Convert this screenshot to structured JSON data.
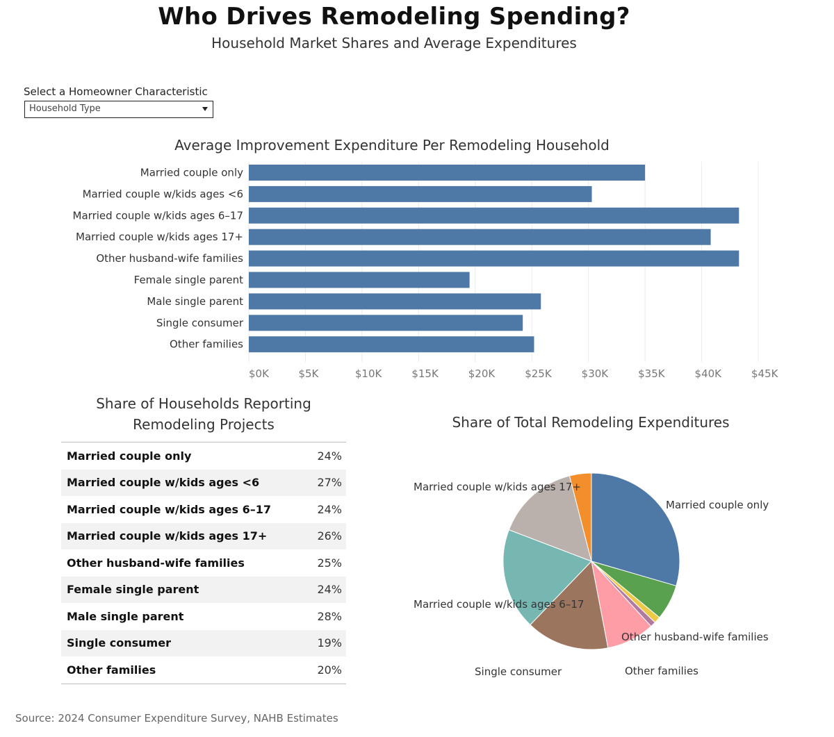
{
  "header": {
    "title": "Who Drives Remodeling Spending?",
    "subtitle": "Household Market Shares and Average Expenditures"
  },
  "filter": {
    "label": "Select a Homeowner Characteristic",
    "selected": "Household Type"
  },
  "footer": {
    "source": "Source: 2024 Consumer Expenditure Survey, NAHB Estimates"
  },
  "chart_data": [
    {
      "type": "bar",
      "orientation": "horizontal",
      "title": "Average Improvement Expenditure Per Remodeling Household",
      "categories": [
        "Married couple only",
        "Married couple w/kids ages <6",
        "Married couple w/kids ages 6–17",
        "Married couple w/kids ages 17+",
        "Other husband-wife families",
        "Female single parent",
        "Male single parent",
        "Single consumer",
        "Other families"
      ],
      "values": [
        35000,
        30300,
        43300,
        40800,
        43300,
        19500,
        25800,
        24200,
        25200
      ],
      "xlim": [
        0,
        45000
      ],
      "ticks": [
        0,
        5000,
        10000,
        15000,
        20000,
        25000,
        30000,
        35000,
        40000,
        45000
      ],
      "tick_labels": [
        "$0K",
        "$5K",
        "$10K",
        "$15K",
        "$20K",
        "$25K",
        "$30K",
        "$35K",
        "$40K",
        "$45K"
      ],
      "grid": true,
      "color": "#4e79a7"
    },
    {
      "type": "table",
      "title_lines": [
        "Share of Households Reporting",
        "Remodeling Projects"
      ],
      "rows": [
        {
          "label": "Married couple only",
          "value": "24%"
        },
        {
          "label": "Married couple w/kids ages <6",
          "value": "27%"
        },
        {
          "label": "Married couple w/kids ages 6–17",
          "value": "24%"
        },
        {
          "label": "Married couple w/kids ages 17+",
          "value": "26%"
        },
        {
          "label": "Other husband-wife families",
          "value": "25%"
        },
        {
          "label": "Female single parent",
          "value": "24%"
        },
        {
          "label": "Male single parent",
          "value": "28%"
        },
        {
          "label": "Single consumer",
          "value": "19%"
        },
        {
          "label": "Other families",
          "value": "20%"
        }
      ]
    },
    {
      "type": "pie",
      "title": "Share of Total Remodeling Expenditures",
      "slices": [
        {
          "name": "Married couple only",
          "value": 29.5,
          "color": "#4e79a7",
          "labeled": true
        },
        {
          "name": "Married couple w/kids ages <6",
          "value": 6.5,
          "color": "#59a14f",
          "labeled": false
        },
        {
          "name": "Female single parent",
          "value": 1.2,
          "color": "#edc948",
          "labeled": false
        },
        {
          "name": "Male single parent",
          "value": 1.0,
          "color": "#b07aa1",
          "labeled": false
        },
        {
          "name": "Other families",
          "value": 8.8,
          "color": "#ff9da7",
          "labeled": true
        },
        {
          "name": "Single consumer",
          "value": 15.2,
          "color": "#9c755f",
          "labeled": true
        },
        {
          "name": "Married couple w/kids ages 6–17",
          "value": 18.6,
          "color": "#76b7b2",
          "labeled": true
        },
        {
          "name": "Married couple w/kids ages 17+",
          "value": 15.2,
          "color": "#bab0ac",
          "labeled": true
        },
        {
          "name": "Other husband-wife families",
          "value": 4.0,
          "color": "#f28e2b",
          "labeled": true
        }
      ],
      "labels": [
        {
          "text": "Married couple w/kids ages 17+"
        },
        {
          "text": "Married couple only"
        },
        {
          "text": "Married couple w/kids ages 6–17"
        },
        {
          "text": "Other husband-wife families"
        },
        {
          "text": "Single consumer"
        },
        {
          "text": "Other families"
        }
      ]
    }
  ]
}
